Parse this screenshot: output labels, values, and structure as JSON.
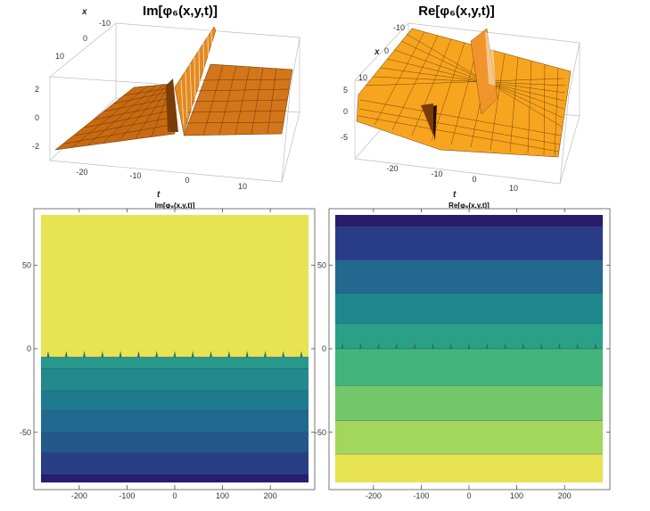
{
  "chart_data": [
    {
      "type": "surface3d",
      "title": "Im[φ₆(x,y,t)]",
      "xlabel": "t",
      "ylabel": "x",
      "t_ticks": [
        "-20",
        "-10",
        "0",
        "10"
      ],
      "x_ticks": [
        "-10",
        "0",
        "10"
      ],
      "z_ticks": [
        "2",
        "0",
        "-2"
      ],
      "t_range": [
        -25,
        15
      ],
      "x_range": [
        -10,
        15
      ],
      "z_range": [
        -2.5,
        2.5
      ],
      "surface_color": "#d97a14"
    },
    {
      "type": "surface3d",
      "title": "Re[φ₆(x,y,t)]",
      "xlabel": "t",
      "ylabel": "x",
      "t_ticks": [
        "-20",
        "-10",
        "0",
        "10"
      ],
      "x_ticks": [
        "-10",
        "0",
        "10"
      ],
      "z_ticks": [
        "5",
        "0",
        "-5"
      ],
      "t_range": [
        -25,
        15
      ],
      "x_range": [
        -10,
        15
      ],
      "z_range": [
        -7,
        7
      ],
      "surface_color": "#f8a51e"
    },
    {
      "type": "contour",
      "title": "Im[φ₆(x,y,t)]",
      "x_ticks": [
        -200,
        -100,
        0,
        100,
        200
      ],
      "y_ticks": [
        50,
        0,
        -50
      ],
      "xlim": [
        -280,
        280
      ],
      "ylim": [
        -80,
        80
      ],
      "boundary_y": -5,
      "bands": [
        {
          "from": -5,
          "to": 80,
          "color": "#e7e353"
        },
        {
          "from": -12,
          "to": -5,
          "color": "#29988c"
        },
        {
          "from": -25,
          "to": -12,
          "color": "#23898d"
        },
        {
          "from": -37,
          "to": -25,
          "color": "#1e7a8e"
        },
        {
          "from": -50,
          "to": -37,
          "color": "#1f6a8e"
        },
        {
          "from": -62,
          "to": -50,
          "color": "#245889"
        },
        {
          "from": -75,
          "to": -62,
          "color": "#283f86"
        },
        {
          "from": -80,
          "to": -75,
          "color": "#2a1d6f"
        }
      ]
    },
    {
      "type": "contour",
      "title": "Re[φ₆(x,y,t)]",
      "x_ticks": [
        -200,
        -100,
        0,
        100,
        200
      ],
      "y_ticks": [
        50,
        0,
        -50
      ],
      "xlim": [
        -280,
        280
      ],
      "ylim": [
        -80,
        80
      ],
      "boundary_y": 0,
      "bands": [
        {
          "from": 73,
          "to": 80,
          "color": "#2b1b6c"
        },
        {
          "from": 53,
          "to": 73,
          "color": "#283c88"
        },
        {
          "from": 33,
          "to": 53,
          "color": "#22688f"
        },
        {
          "from": 15,
          "to": 33,
          "color": "#1f888d"
        },
        {
          "from": 0,
          "to": 15,
          "color": "#2aa088"
        },
        {
          "from": -22,
          "to": 0,
          "color": "#43b47a"
        },
        {
          "from": -43,
          "to": -22,
          "color": "#73c76a"
        },
        {
          "from": -63,
          "to": -43,
          "color": "#a3d65c"
        },
        {
          "from": -80,
          "to": -63,
          "color": "#e7e353"
        }
      ]
    }
  ]
}
